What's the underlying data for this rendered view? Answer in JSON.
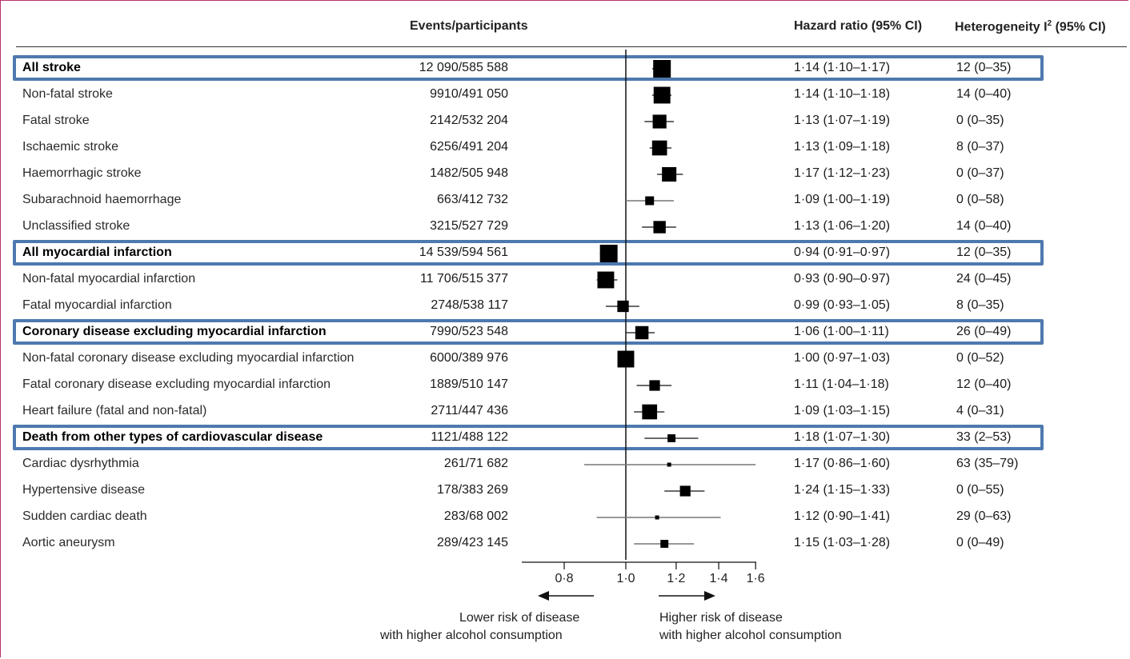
{
  "headers": {
    "events": "Events/participants",
    "hr": "Hazard ratio (95% CI)",
    "het_prefix": "Heterogeneity I",
    "het_sup": "2",
    "het_suffix": " (95% CI)"
  },
  "chart_data": {
    "type": "forest",
    "xlabel": "",
    "x_scale": "log",
    "xlim": [
      0.7,
      1.6
    ],
    "null_value": 1.0,
    "ticks": [
      "0·8",
      "1·0",
      "1·2",
      "1·4",
      "1·6"
    ],
    "tick_values": [
      0.8,
      1.0,
      1.2,
      1.4,
      1.6
    ],
    "highlight_color": "#4e79ae",
    "rows": [
      {
        "label": "All stroke",
        "bold": true,
        "events": "12 090/585 588",
        "est": 1.14,
        "lo": 1.1,
        "hi": 1.17,
        "hr_text": "1·14 (1·10–1·17)",
        "het_text": "12 (0–35)",
        "box": 1.0
      },
      {
        "label": "Non-fatal stroke",
        "bold": false,
        "events": "9910/491 050",
        "est": 1.14,
        "lo": 1.1,
        "hi": 1.18,
        "hr_text": "1·14 (1·10–1·18)",
        "het_text": "14 (0–40)",
        "box": 0.95
      },
      {
        "label": "Fatal stroke",
        "bold": false,
        "events": "2142/532 204",
        "est": 1.13,
        "lo": 1.07,
        "hi": 1.19,
        "hr_text": "1·13 (1·07–1·19)",
        "het_text": "0 (0–35)",
        "box": 0.78
      },
      {
        "label": "Ischaemic stroke",
        "bold": false,
        "events": "6256/491 204",
        "est": 1.13,
        "lo": 1.09,
        "hi": 1.18,
        "hr_text": "1·13 (1·09–1·18)",
        "het_text": "8 (0–37)",
        "box": 0.85
      },
      {
        "label": "Haemorrhagic stroke",
        "bold": false,
        "events": "1482/505 948",
        "est": 1.17,
        "lo": 1.12,
        "hi": 1.23,
        "hr_text": "1·17 (1·12–1·23)",
        "het_text": "0 (0–37)",
        "box": 0.82
      },
      {
        "label": "Subarachnoid haemorrhage",
        "bold": false,
        "events": "663/412 732",
        "est": 1.09,
        "lo": 1.0,
        "hi": 1.19,
        "hr_text": "1·09 (1·00–1·19)",
        "het_text": "0 (0–58)",
        "box": 0.5,
        "thin": true
      },
      {
        "label": "Unclassified stroke",
        "bold": false,
        "events": "3215/527 729",
        "est": 1.13,
        "lo": 1.06,
        "hi": 1.2,
        "hr_text": "1·13 (1·06–1·20)",
        "het_text": "14 (0–40)",
        "box": 0.7
      },
      {
        "label": "All myocardial infarction",
        "bold": true,
        "events": "14 539/594 561",
        "est": 0.94,
        "lo": 0.91,
        "hi": 0.97,
        "hr_text": "0·94 (0·91–0·97)",
        "het_text": "12 (0–35)",
        "box": 1.0
      },
      {
        "label": "Non-fatal myocardial infarction",
        "bold": false,
        "events": "11 706/515 377",
        "est": 0.93,
        "lo": 0.9,
        "hi": 0.97,
        "hr_text": "0·93 (0·90–0·97)",
        "het_text": "24 (0–45)",
        "box": 0.95
      },
      {
        "label": "Fatal myocardial infarction",
        "bold": false,
        "events": "2748/538 117",
        "est": 0.99,
        "lo": 0.93,
        "hi": 1.05,
        "hr_text": "0·99 (0·93–1·05)",
        "het_text": "8 (0–35)",
        "box": 0.65
      },
      {
        "label": "Coronary disease excluding myocardial infarction",
        "bold": true,
        "events": "7990/523 548",
        "est": 1.06,
        "lo": 1.0,
        "hi": 1.11,
        "hr_text": "1·06 (1·00–1·11)",
        "het_text": "26 (0–49)",
        "box": 0.75
      },
      {
        "label": "Non-fatal coronary disease excluding myocardial infarction",
        "bold": false,
        "events": "6000/389 976",
        "est": 1.0,
        "lo": 0.97,
        "hi": 1.03,
        "hr_text": "1·00 (0·97–1·03)",
        "het_text": "0 (0–52)",
        "box": 0.95
      },
      {
        "label": "Fatal coronary disease excluding myocardial infarction",
        "bold": false,
        "events": "1889/510 147",
        "est": 1.11,
        "lo": 1.04,
        "hi": 1.18,
        "hr_text": "1·11 (1·04–1·18)",
        "het_text": "12 (0–40)",
        "box": 0.6
      },
      {
        "label": "Heart failure (fatal and non-fatal)",
        "bold": false,
        "events": "2711/447 436",
        "est": 1.09,
        "lo": 1.03,
        "hi": 1.15,
        "hr_text": "1·09 (1·03–1·15)",
        "het_text": "4 (0–31)",
        "box": 0.85
      },
      {
        "label": "Death from other types of cardiovascular disease",
        "bold": true,
        "events": "1121/488 122",
        "est": 1.18,
        "lo": 1.07,
        "hi": 1.3,
        "hr_text": "1·18 (1·07–1·30)",
        "het_text": "33 (2–53)",
        "box": 0.45
      },
      {
        "label": "Cardiac dysrhythmia",
        "bold": false,
        "events": "261/71 682",
        "est": 1.17,
        "lo": 0.86,
        "hi": 1.6,
        "hr_text": "1·17 (0·86–1·60)",
        "het_text": "63 (35–79)",
        "box": 0.22,
        "thin": true
      },
      {
        "label": "Hypertensive disease",
        "bold": false,
        "events": "178/383 269",
        "est": 1.24,
        "lo": 1.15,
        "hi": 1.33,
        "hr_text": "1·24 (1·15–1·33)",
        "het_text": "0 (0–55)",
        "box": 0.6
      },
      {
        "label": "Sudden cardiac death",
        "bold": false,
        "events": "283/68 002",
        "est": 1.12,
        "lo": 0.9,
        "hi": 1.41,
        "hr_text": "1·12 (0·90–1·41)",
        "het_text": "29 (0–63)",
        "box": 0.2,
        "thin": true
      },
      {
        "label": "Aortic aneurysm",
        "bold": false,
        "events": "289/423 145",
        "est": 1.15,
        "lo": 1.03,
        "hi": 1.28,
        "hr_text": "1·15 (1·03–1·28)",
        "het_text": "0 (0–49)",
        "box": 0.45,
        "thin": true
      }
    ],
    "highlighted_rows": [
      0,
      7,
      10,
      14
    ]
  },
  "direction": {
    "lower_line1": "Lower risk of disease",
    "lower_line2": "with higher alcohol consumption",
    "higher_line1": "Higher risk of disease",
    "higher_line2": "with higher alcohol consumption"
  }
}
